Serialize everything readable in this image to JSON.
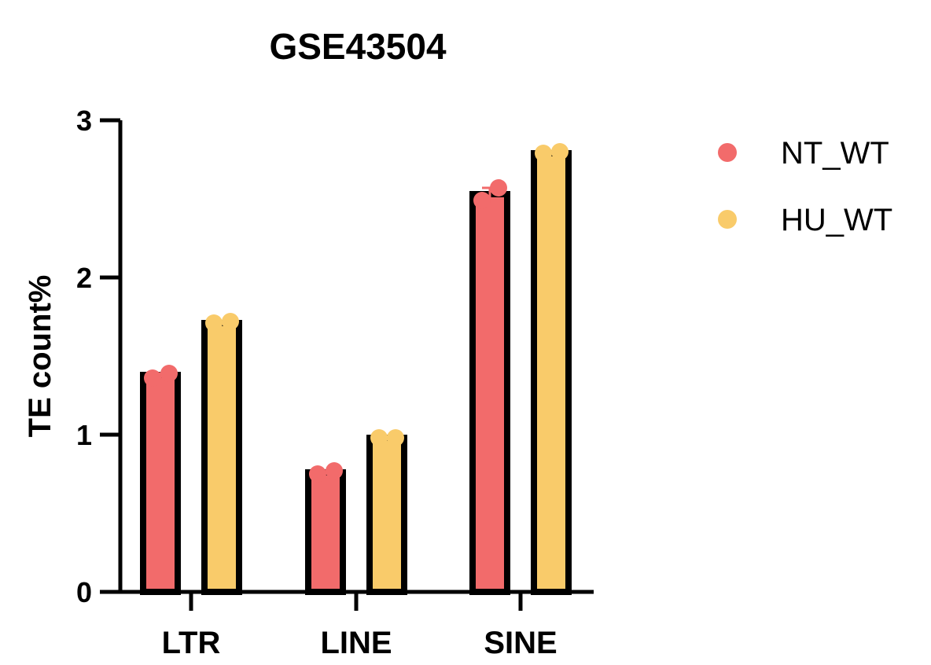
{
  "chart_data": {
    "type": "bar",
    "title": "GSE43504",
    "xlabel": "",
    "ylabel": "TE count%",
    "ylim": [
      0,
      3
    ],
    "yticks": [
      0,
      1,
      2,
      3
    ],
    "categories": [
      "LTR",
      "LINE",
      "SINE"
    ],
    "series": [
      {
        "name": "NT_WT",
        "color": "#F26B6B",
        "values": [
          1.38,
          0.76,
          2.53
        ],
        "points": [
          [
            1.36,
            1.39
          ],
          [
            0.75,
            0.77
          ],
          [
            2.49,
            2.57
          ]
        ]
      },
      {
        "name": "HU_WT",
        "color": "#F9CB6A",
        "values": [
          1.71,
          0.98,
          2.79
        ],
        "points": [
          [
            1.71,
            1.72
          ],
          [
            0.98,
            0.98
          ],
          [
            2.79,
            2.8
          ]
        ]
      }
    ],
    "legend_position": "right",
    "grid": false
  }
}
